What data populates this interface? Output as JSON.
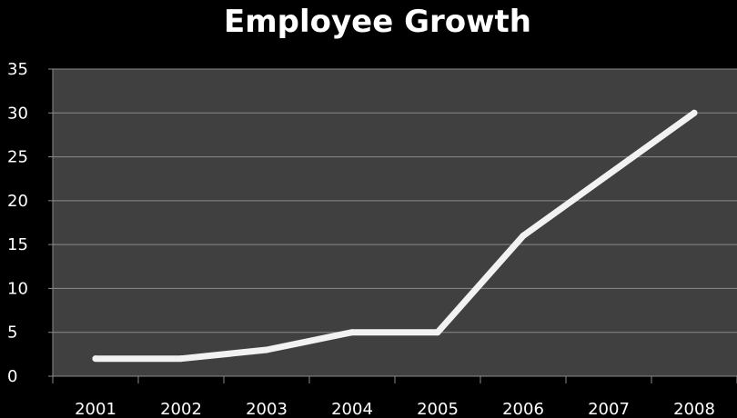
{
  "chart_data": {
    "type": "line",
    "title": "Employee Growth",
    "xlabel": "",
    "ylabel": "",
    "categories": [
      "2001",
      "2002",
      "2003",
      "2004",
      "2005",
      "2006",
      "2007",
      "2008"
    ],
    "series": [
      {
        "values": [
          2,
          2,
          3,
          5,
          5,
          16,
          23,
          30
        ]
      }
    ],
    "ylim": [
      0,
      35
    ],
    "yticks": [
      0,
      5,
      10,
      15,
      20,
      25,
      30,
      35
    ],
    "grid": true,
    "legend": "none",
    "colors": {
      "background": "#000000",
      "plot_area": "#404040",
      "line": "#f2f2f2",
      "gridline": "#8a8a8a",
      "text": "#ffffff"
    }
  }
}
